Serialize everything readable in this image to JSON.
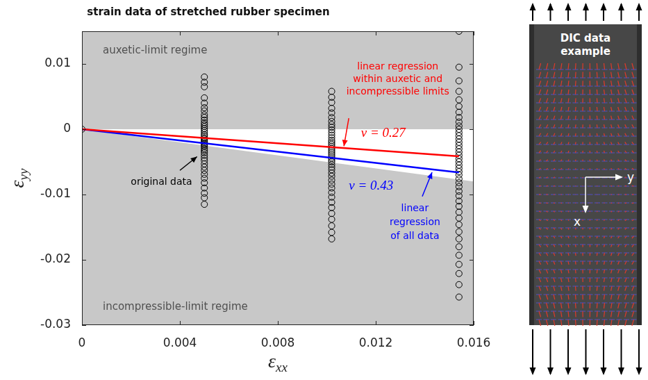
{
  "chart_data": {
    "type": "scatter",
    "title": "strain data of stretched rubber specimen",
    "x_label": "εxx",
    "y_label": "εyy",
    "xlim": [
      0,
      0.016
    ],
    "xticks": [
      0,
      0.004,
      0.008,
      0.012,
      0.016
    ],
    "ylim": [
      -0.03,
      0.015
    ],
    "yticks": [
      -0.03,
      -0.02,
      -0.01,
      0,
      0.01
    ],
    "grid": false,
    "annotations": [
      "auxetic-limit regime",
      "incompressible-limit regime"
    ],
    "regions": [
      {
        "x": [
          0,
          0.016
        ],
        "upper": [
          0,
          0
        ],
        "lower": [
          0,
          -0.008
        ]
      }
    ],
    "series": [
      {
        "name": "original data",
        "type": "scatter",
        "color": "#000000",
        "marker": "circle",
        "x": [
          0,
          0.005,
          0.005,
          0.005,
          0.005,
          0.005,
          0.005,
          0.005,
          0.005,
          0.005,
          0.005,
          0.005,
          0.005,
          0.005,
          0.005,
          0.005,
          0.005,
          0.005,
          0.005,
          0.005,
          0.005,
          0.005,
          0.005,
          0.005,
          0.005,
          0.005,
          0.005,
          0.005,
          0.005,
          0.005,
          0.005,
          0.005,
          0.005,
          0.005,
          0.005,
          0.005,
          0.005,
          0.005,
          0.005,
          0.005,
          0.005,
          0.005,
          0.005,
          0.0102,
          0.0102,
          0.0102,
          0.0102,
          0.0102,
          0.0102,
          0.0102,
          0.0102,
          0.0102,
          0.0102,
          0.0102,
          0.0102,
          0.0102,
          0.0102,
          0.0102,
          0.0102,
          0.0102,
          0.0102,
          0.0102,
          0.0102,
          0.0102,
          0.0102,
          0.0102,
          0.0102,
          0.0102,
          0.0102,
          0.0102,
          0.0102,
          0.0102,
          0.0102,
          0.0102,
          0.0102,
          0.0102,
          0.0102,
          0.0102,
          0.0102,
          0.0102,
          0.0102,
          0.0102,
          0.0102,
          0.0102,
          0.0102,
          0.0154,
          0.0154,
          0.0154,
          0.0154,
          0.0154,
          0.0154,
          0.0154,
          0.0154,
          0.0154,
          0.0154,
          0.0154,
          0.0154,
          0.0154,
          0.0154,
          0.0154,
          0.0154,
          0.0154,
          0.0154,
          0.0154,
          0.0154,
          0.0154,
          0.0154,
          0.0154,
          0.0154,
          0.0154,
          0.0154,
          0.0154,
          0.0154,
          0.0154,
          0.0154,
          0.0154,
          0.0154,
          0.0154,
          0.0154,
          0.0154,
          0.0154,
          0.0154,
          0.0154,
          0.0154,
          0.0154,
          0.0154,
          0.0154,
          0.0154
        ],
        "values": [
          0,
          0.008,
          0.0072,
          0.0065,
          0.0048,
          0.004,
          0.0033,
          0.0028,
          0.0022,
          0.0018,
          0.0014,
          0.001,
          0.0007,
          0.0004,
          0.0001,
          -0.0002,
          -0.0005,
          -0.0008,
          -0.001,
          -0.0013,
          -0.0015,
          -0.0017,
          -0.0019,
          -0.0021,
          -0.0023,
          -0.0025,
          -0.0027,
          -0.003,
          -0.0033,
          -0.0036,
          -0.004,
          -0.0044,
          -0.0048,
          -0.0053,
          -0.0058,
          -0.0063,
          -0.0069,
          -0.0075,
          -0.0082,
          -0.009,
          -0.0098,
          -0.0105,
          -0.0115,
          0.0058,
          0.0049,
          0.0041,
          0.0032,
          0.0025,
          0.0018,
          0.0012,
          0.0007,
          0.0003,
          -0.0001,
          -0.0005,
          -0.0009,
          -0.0013,
          -0.0017,
          -0.002,
          -0.0023,
          -0.0026,
          -0.0029,
          -0.0032,
          -0.0035,
          -0.0038,
          -0.0041,
          -0.0044,
          -0.0047,
          -0.005,
          -0.0054,
          -0.0058,
          -0.0062,
          -0.0067,
          -0.0072,
          -0.0078,
          -0.0084,
          -0.009,
          -0.0097,
          -0.0104,
          -0.0112,
          -0.012,
          -0.0129,
          -0.0138,
          -0.0148,
          -0.0158,
          -0.0168,
          0.015,
          0.0095,
          0.0074,
          0.0058,
          0.0045,
          0.0035,
          0.0026,
          0.0018,
          0.0011,
          0.0005,
          0,
          -0.0005,
          -0.001,
          -0.0015,
          -0.002,
          -0.0025,
          -0.003,
          -0.0035,
          -0.004,
          -0.0045,
          -0.005,
          -0.0055,
          -0.006,
          -0.0065,
          -0.007,
          -0.0076,
          -0.0082,
          -0.0088,
          -0.0095,
          -0.0102,
          -0.011,
          -0.0118,
          -0.0127,
          -0.0136,
          -0.0146,
          -0.0157,
          -0.0168,
          -0.018,
          -0.0193,
          -0.0207,
          -0.0221,
          -0.0238,
          -0.0257
        ]
      },
      {
        "name": "linear regression within auxetic and incompressible limits",
        "type": "line",
        "color": "#ff0000",
        "line_style": "solid",
        "annotation": "ν = 0.27",
        "x": [
          0,
          0.0154
        ],
        "values": [
          0,
          -0.004158
        ]
      },
      {
        "name": "linear regression of all data",
        "type": "line",
        "color": "#0000ff",
        "line_style": "solid",
        "annotation": "ν = 0.43",
        "x": [
          0,
          0.0154
        ],
        "values": [
          0,
          -0.006622
        ]
      }
    ]
  },
  "panel": {
    "title": "DIC data example",
    "axis_labels": {
      "x": "x",
      "y": "y"
    }
  }
}
